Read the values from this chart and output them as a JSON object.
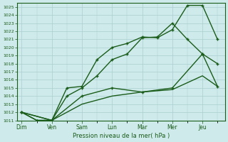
{
  "title": "Pression niveau de la mer( hPa )",
  "x_labels": [
    "Dim",
    "Ven",
    "Sam",
    "Lun",
    "Mar",
    "Mer",
    "Jeu"
  ],
  "ylim": [
    1011,
    1025.5
  ],
  "yticks": [
    1011,
    1012,
    1013,
    1014,
    1015,
    1016,
    1017,
    1018,
    1019,
    1020,
    1021,
    1022,
    1023,
    1024,
    1025
  ],
  "line1_x": [
    0,
    1,
    2,
    3,
    4,
    5,
    6,
    7,
    8,
    9,
    10,
    11,
    12,
    13
  ],
  "line1_y": [
    1012,
    1011,
    1011,
    1015,
    1015.2,
    1018.5,
    1020,
    1020.5,
    1021.3,
    1021.2,
    1022.2,
    1025.2,
    1025.2,
    1021
  ],
  "line2_x": [
    0,
    1,
    2,
    3,
    4,
    5,
    6,
    7,
    8,
    9,
    10,
    11,
    12,
    13
  ],
  "line2_y": [
    1012,
    1011,
    1011,
    1014,
    1015,
    1016.5,
    1018.5,
    1019.2,
    1021.2,
    1021.3,
    1023,
    1021,
    1019.2,
    1018
  ],
  "line3_x": [
    0,
    2,
    4,
    6,
    8,
    10,
    12,
    13
  ],
  "line3_y": [
    1012,
    1011,
    1014,
    1015,
    1014.5,
    1015.0,
    1019.2,
    1015.2
  ],
  "line4_x": [
    0,
    2,
    4,
    6,
    8,
    10,
    12,
    13
  ],
  "line4_y": [
    1012,
    1011,
    1013,
    1014,
    1014.5,
    1014.8,
    1016.5,
    1015.2
  ],
  "xtick_positions": [
    0,
    2,
    4,
    6,
    8,
    10,
    12
  ],
  "color": "#1a5c1a",
  "background_color": "#ceeaea",
  "grid_color": "#aacece"
}
